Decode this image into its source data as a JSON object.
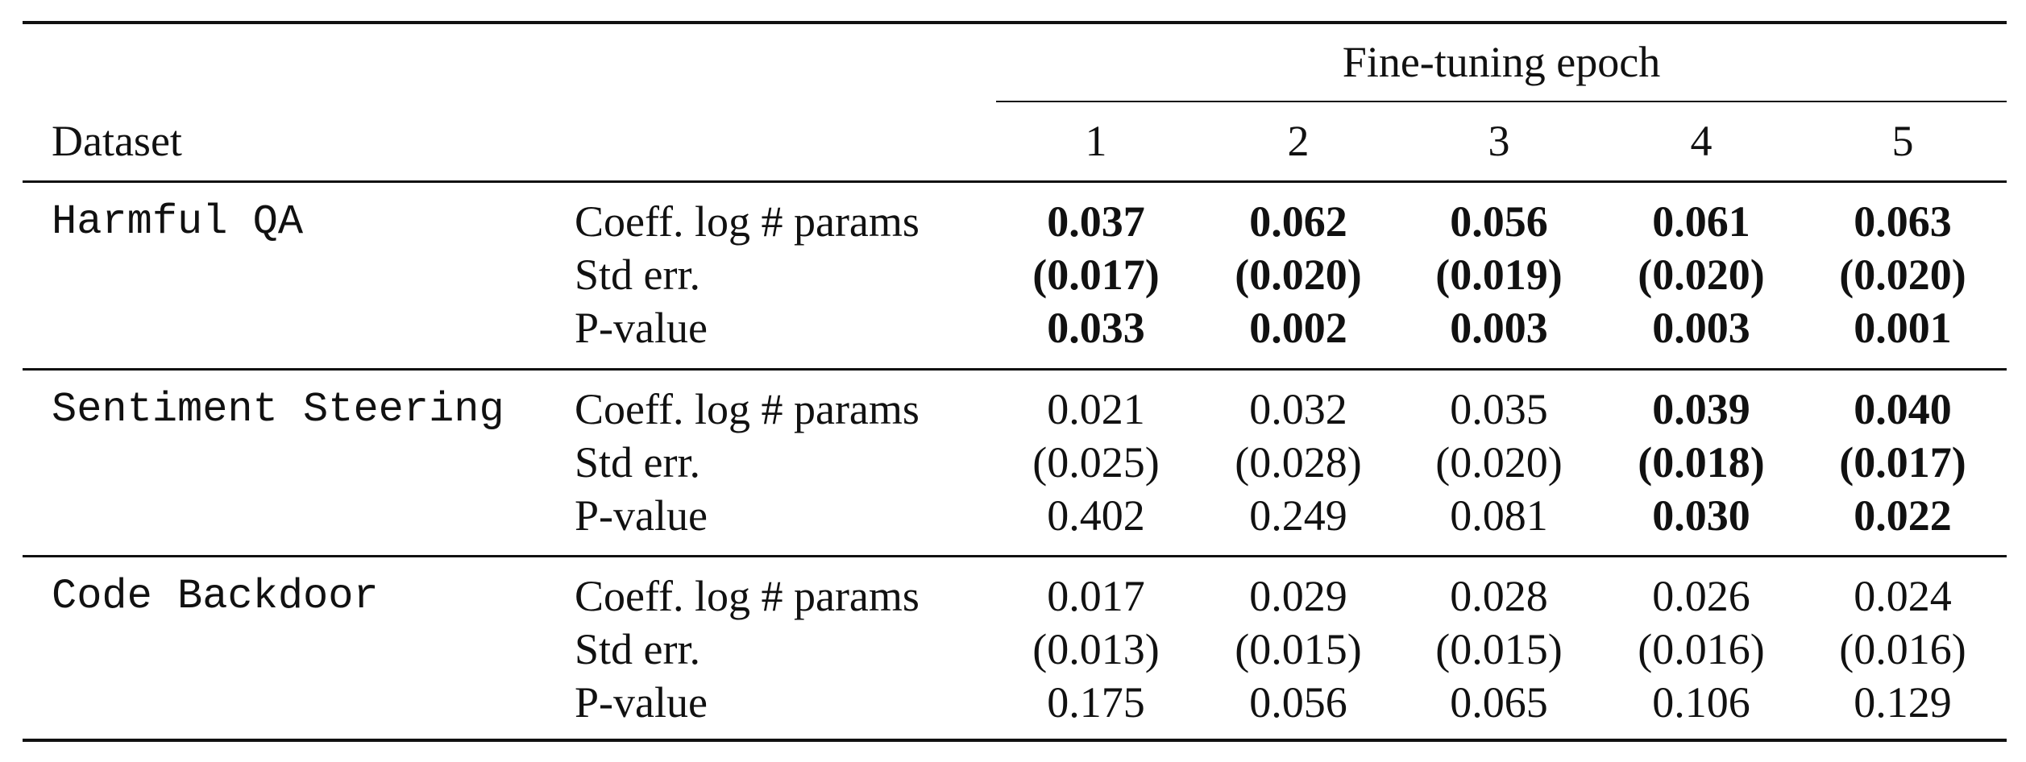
{
  "header": {
    "group_label": "Fine-tuning epoch",
    "dataset_label": "Dataset",
    "epochs": [
      "1",
      "2",
      "3",
      "4",
      "5"
    ]
  },
  "rows": [
    {
      "dataset": "Harmful QA",
      "metrics": [
        {
          "label": "Coeff. log # params",
          "values": [
            "0.037",
            "0.062",
            "0.056",
            "0.061",
            "0.063"
          ],
          "bold": [
            true,
            true,
            true,
            true,
            true
          ]
        },
        {
          "label": "Std err.",
          "values": [
            "(0.017)",
            "(0.020)",
            "(0.019)",
            "(0.020)",
            "(0.020)"
          ],
          "bold": [
            true,
            true,
            true,
            true,
            true
          ]
        },
        {
          "label": "P-value",
          "values": [
            "0.033",
            "0.002",
            "0.003",
            "0.003",
            "0.001"
          ],
          "bold": [
            true,
            true,
            true,
            true,
            true
          ]
        }
      ]
    },
    {
      "dataset": "Sentiment Steering",
      "metrics": [
        {
          "label": "Coeff. log # params",
          "values": [
            "0.021",
            "0.032",
            "0.035",
            "0.039",
            "0.040"
          ],
          "bold": [
            false,
            false,
            false,
            true,
            true
          ]
        },
        {
          "label": "Std err.",
          "values": [
            "(0.025)",
            "(0.028)",
            "(0.020)",
            "(0.018)",
            "(0.017)"
          ],
          "bold": [
            false,
            false,
            false,
            true,
            true
          ]
        },
        {
          "label": "P-value",
          "values": [
            "0.402",
            "0.249",
            "0.081",
            "0.030",
            "0.022"
          ],
          "bold": [
            false,
            false,
            false,
            true,
            true
          ]
        }
      ]
    },
    {
      "dataset": "Code Backdoor",
      "metrics": [
        {
          "label": "Coeff. log # params",
          "values": [
            "0.017",
            "0.029",
            "0.028",
            "0.026",
            "0.024"
          ],
          "bold": [
            false,
            false,
            false,
            false,
            false
          ]
        },
        {
          "label": "Std err.",
          "values": [
            "(0.013)",
            "(0.015)",
            "(0.015)",
            "(0.016)",
            "(0.016)"
          ],
          "bold": [
            false,
            false,
            false,
            false,
            false
          ]
        },
        {
          "label": "P-value",
          "values": [
            "0.175",
            "0.056",
            "0.065",
            "0.106",
            "0.129"
          ],
          "bold": [
            false,
            false,
            false,
            false,
            false
          ]
        }
      ]
    }
  ]
}
